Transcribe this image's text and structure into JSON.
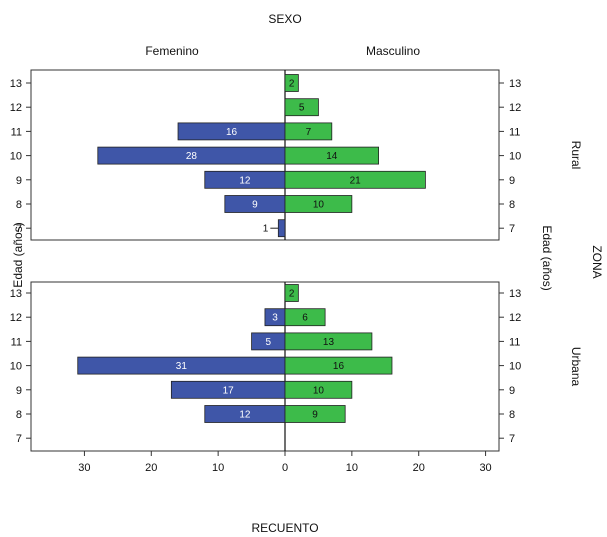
{
  "chart_data": {
    "type": "bar",
    "orientation": "horizontal",
    "title": "SEXO",
    "column_labels": [
      "Femenino",
      "Masculino"
    ],
    "row_title": "ZONA",
    "ylabel_left": "Edad (años)",
    "ylabel_right": "Edad (años)",
    "xlabel": "RECUENTO",
    "xticks": [
      30,
      20,
      10,
      0,
      10,
      20,
      30
    ],
    "xlim": [
      -35,
      35
    ],
    "age_categories": [
      "7",
      "8",
      "9",
      "10",
      "11",
      "12",
      "13"
    ],
    "colors": {
      "Femenino": "#3f56a8",
      "Masculino": "#3dbb4a"
    },
    "panels": [
      {
        "zone": "Rural",
        "series": [
          {
            "name": "Femenino",
            "values": [
              1,
              9,
              12,
              28,
              16,
              null,
              null
            ]
          },
          {
            "name": "Masculino",
            "values": [
              null,
              10,
              21,
              14,
              7,
              5,
              2
            ]
          }
        ]
      },
      {
        "zone": "Urbana",
        "series": [
          {
            "name": "Femenino",
            "values": [
              null,
              12,
              17,
              31,
              5,
              3,
              null
            ]
          },
          {
            "name": "Masculino",
            "values": [
              null,
              9,
              10,
              16,
              13,
              6,
              2
            ]
          }
        ]
      }
    ]
  }
}
